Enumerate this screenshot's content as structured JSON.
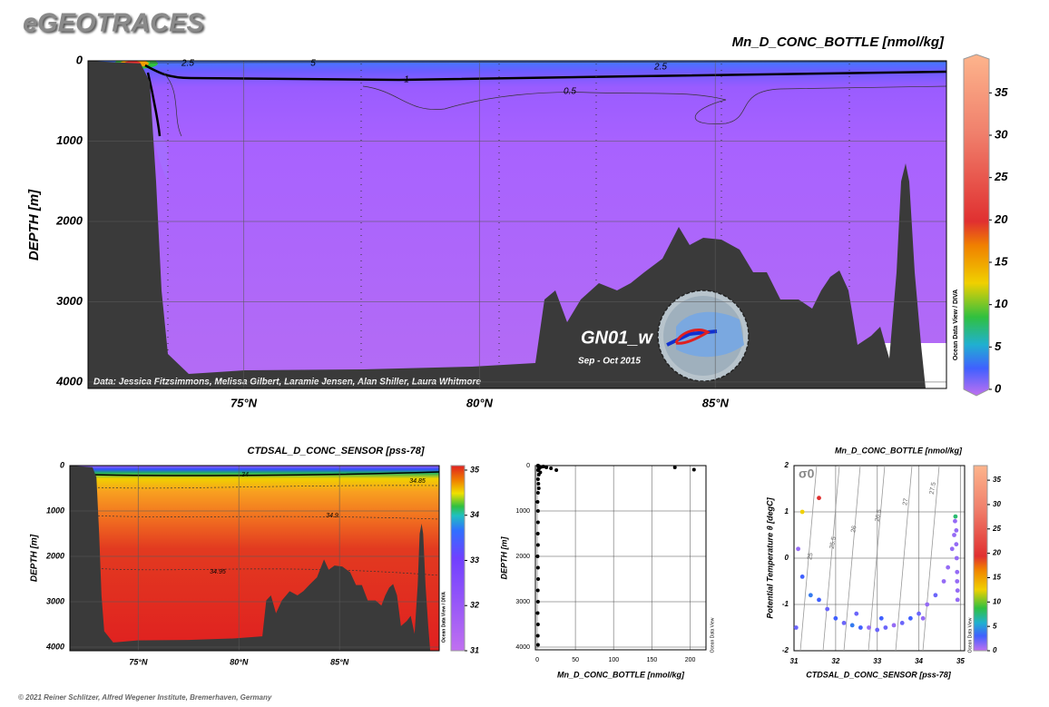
{
  "header": {
    "title": "eGEOTRACES"
  },
  "footer": "© 2021 Reiner Schlitzer, Alfred Wegener Institute, Bremerhaven, Germany",
  "chart_data": [
    {
      "type": "section",
      "title": "Mn_D_CONC_BOTTLE [nmol/kg]",
      "ylabel": "DEPTH [m]",
      "xlim": [
        71.7,
        89.9
      ],
      "xticks": [
        {
          "value": 75,
          "label": "75°N"
        },
        {
          "value": 80,
          "label": "80°N"
        },
        {
          "value": 85,
          "label": "85°N"
        }
      ],
      "ylim": [
        0,
        4080
      ],
      "yticks": [
        0,
        1000,
        2000,
        3000,
        4000
      ],
      "colorbar_lim": [
        0,
        39
      ],
      "colorbar_ticks": [
        0,
        5,
        10,
        15,
        20,
        25,
        30,
        35
      ],
      "contour_labels": [
        2.5,
        5,
        1,
        0.5,
        2.5
      ],
      "credit": "Data: Jessica Fitzsimmons, Melissa Gilbert, Laramie Jensen, Alan Shiller, Laura Whitmore",
      "annotation": "GN01_w",
      "annotation_subtitle": "Sep - Oct 2015",
      "side_note": "Ocean Data View / DIVA",
      "grid": true
    },
    {
      "type": "section",
      "title": "CTDSAL_D_CONC_SENSOR [pss-78]",
      "ylabel": "DEPTH [m]",
      "xlim": [
        71.6,
        89.95
      ],
      "xticks": [
        {
          "value": 75,
          "label": "75°N"
        },
        {
          "value": 80,
          "label": "80°N"
        },
        {
          "value": 85,
          "label": "85°N"
        }
      ],
      "ylim": [
        0,
        4080
      ],
      "yticks": [
        0,
        1000,
        2000,
        3000,
        4000
      ],
      "colorbar_lim": [
        31,
        35.1
      ],
      "colorbar_ticks": [
        31,
        32,
        33,
        34,
        35
      ],
      "contour_labels": [
        34,
        34.85,
        34.9,
        34.95
      ],
      "side_note": "Ocean Data View / DIVA",
      "grid": true
    },
    {
      "type": "scatter",
      "xlabel": "Mn_D_CONC_BOTTLE [nmol/kg]",
      "ylabel": "DEPTH [m]",
      "xlim": [
        -2.4,
        220.7
      ],
      "xticks": [
        0,
        50,
        100,
        150,
        200
      ],
      "ylim": [
        0,
        4060
      ],
      "yticks": [
        0,
        1000,
        2000,
        3000,
        4000
      ],
      "x": [
        1,
        2,
        1.5,
        3,
        2,
        1,
        4,
        2,
        1,
        1.5,
        2,
        1,
        0.5,
        1,
        1,
        0.8,
        1,
        0.5,
        1,
        1.2,
        0.8,
        1,
        0.6,
        1,
        0.8,
        1,
        8,
        12,
        18,
        25,
        5,
        180,
        205
      ],
      "y": [
        0,
        10,
        25,
        50,
        75,
        100,
        150,
        200,
        300,
        400,
        500,
        600,
        800,
        1000,
        1250,
        1500,
        1750,
        2000,
        2250,
        2500,
        2750,
        3000,
        3250,
        3500,
        3750,
        3950,
        20,
        40,
        60,
        100,
        30,
        40,
        90
      ],
      "color": "#000000",
      "side_note": "Ocean Data View",
      "grid": true
    },
    {
      "type": "ts",
      "title": "Mn_D_CONC_BOTTLE [nmol/kg]",
      "xlabel": "CTDSAL_D_CONC_SENSOR [pss-78]",
      "ylabel": "Potential Temperature θ [degC]",
      "xlim": [
        31,
        35.1
      ],
      "xticks": [
        31,
        32,
        33,
        34,
        35
      ],
      "ylim": [
        -2,
        2
      ],
      "yticks": [
        -2,
        -1,
        0,
        1,
        2
      ],
      "x": [
        31.05,
        31.1,
        31.2,
        31.2,
        31.4,
        31.6,
        31.6,
        31.8,
        32.0,
        32.2,
        32.4,
        32.5,
        32.6,
        32.8,
        33.0,
        33.1,
        33.2,
        33.4,
        33.6,
        33.8,
        34.0,
        34.1,
        34.2,
        34.4,
        34.6,
        34.7,
        34.8,
        34.85,
        34.87,
        34.88,
        34.9,
        34.9,
        34.91,
        34.92,
        34.92,
        34.93,
        34.93
      ],
      "y": [
        -1.5,
        0.2,
        -0.4,
        1.0,
        -0.8,
        -0.9,
        1.3,
        -1.1,
        -1.3,
        -1.4,
        -1.45,
        -1.2,
        -1.5,
        -1.5,
        -1.55,
        -1.3,
        -1.5,
        -1.45,
        -1.4,
        -1.3,
        -1.2,
        -1.3,
        -1.0,
        -0.8,
        -0.5,
        -0.2,
        0.2,
        0.5,
        0.8,
        0.9,
        0.6,
        0.3,
        0,
        -0.3,
        -0.5,
        -0.7,
        -0.9
      ],
      "color_values": [
        2,
        1,
        3,
        13,
        4,
        3,
        20,
        2,
        3,
        2,
        4,
        2,
        3,
        1,
        2,
        3,
        2,
        1,
        2,
        3,
        2,
        1,
        1,
        2,
        1,
        1,
        1,
        1,
        1,
        8,
        1,
        1,
        1,
        1,
        1,
        1,
        1
      ],
      "colorbar_lim": [
        0,
        38
      ],
      "colorbar_ticks": [
        0,
        5,
        10,
        15,
        20,
        25,
        30,
        35
      ],
      "isopycnal_label": "σ0",
      "isopycnal_labels": [
        25,
        25.5,
        26,
        26.5,
        27,
        27.5
      ],
      "side_note": "Ocean Data View",
      "grid": true
    }
  ]
}
